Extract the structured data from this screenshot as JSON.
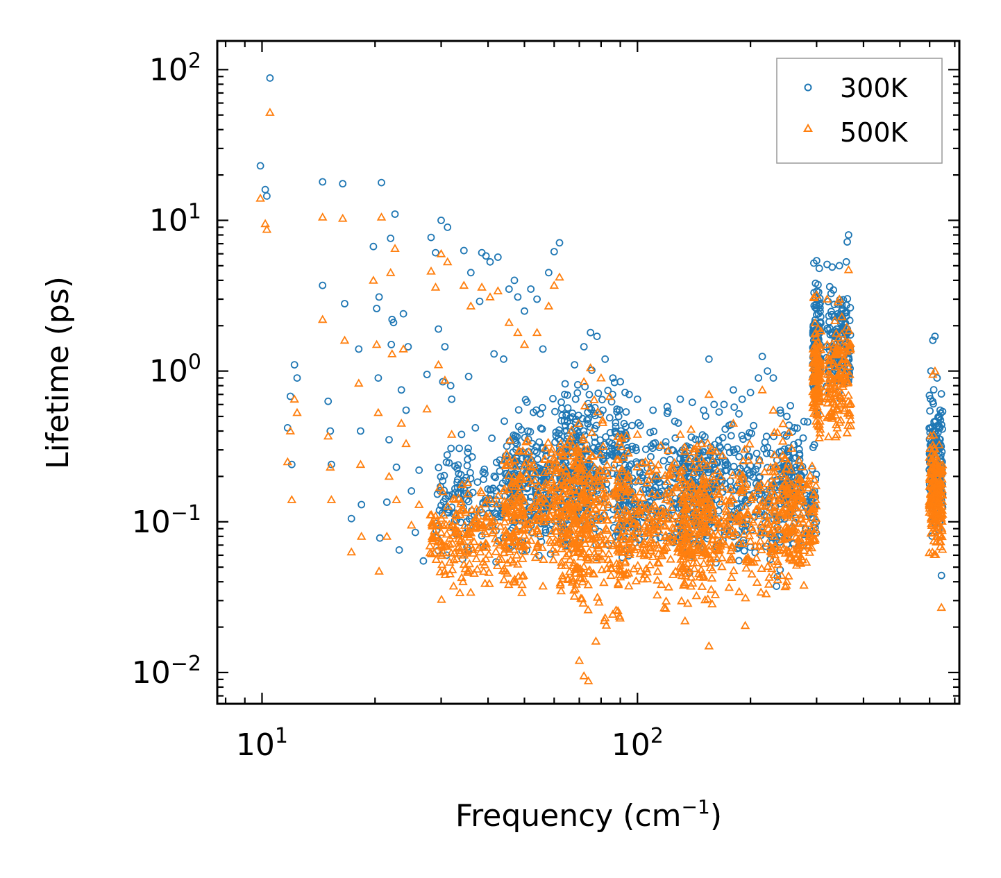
{
  "chart_data": {
    "type": "scatter",
    "xscale": "log",
    "yscale": "log",
    "xlabel": "Frequency (cm",
    "xlabel_sup": "−1",
    "xlabel_end": ")",
    "ylabel": "Lifetime (ps)",
    "xlim": [
      7.6,
      720
    ],
    "ylim": [
      0.0062,
      155
    ],
    "x_ticks": [
      {
        "value": 10,
        "base": "10",
        "exp": "1"
      },
      {
        "value": 100,
        "base": "10",
        "exp": "2"
      }
    ],
    "y_ticks": [
      {
        "value": 0.01,
        "base": "10",
        "exp": "−2"
      },
      {
        "value": 0.1,
        "base": "10",
        "exp": "−1"
      },
      {
        "value": 1,
        "base": "10",
        "exp": "0"
      },
      {
        "value": 10,
        "base": "10",
        "exp": "1"
      },
      {
        "value": 100,
        "base": "10",
        "exp": "2"
      }
    ],
    "legend": {
      "location": "upper-right"
    },
    "series": [
      {
        "name": "300K",
        "marker": "circle",
        "color": "#1f77b4",
        "points": [
          [
            9.9,
            23
          ],
          [
            10.2,
            16
          ],
          [
            10.3,
            14.5
          ],
          [
            10.5,
            88
          ],
          [
            11.7,
            0.42
          ],
          [
            11.9,
            0.68
          ],
          [
            12.0,
            0.24
          ],
          [
            12.2,
            1.1
          ],
          [
            12.4,
            0.9
          ],
          [
            14.5,
            18
          ],
          [
            14.5,
            3.7
          ],
          [
            15.0,
            0.63
          ],
          [
            15.2,
            0.4
          ],
          [
            15.3,
            0.24
          ],
          [
            16.4,
            17.5
          ],
          [
            16.6,
            2.8
          ],
          [
            17.3,
            0.105
          ],
          [
            18.1,
            1.4
          ],
          [
            18.3,
            0.4
          ],
          [
            18.4,
            0.13
          ],
          [
            19.8,
            6.7
          ],
          [
            20.2,
            2.6
          ],
          [
            20.4,
            0.9
          ],
          [
            20.5,
            3.1
          ],
          [
            20.8,
            17.8
          ],
          [
            20.6,
            0.078
          ],
          [
            21.5,
            0.135
          ],
          [
            21.8,
            0.35
          ],
          [
            22.0,
            7.6
          ],
          [
            22.1,
            1.5
          ],
          [
            22.2,
            2.2
          ],
          [
            22.4,
            2.1
          ],
          [
            22.6,
            11
          ],
          [
            22.8,
            0.23
          ],
          [
            23.2,
            0.065
          ],
          [
            23.5,
            0.75
          ],
          [
            23.8,
            2.4
          ],
          [
            24.2,
            0.55
          ],
          [
            24.5,
            1.45
          ],
          [
            25.0,
            0.16
          ],
          [
            25.6,
            0.085
          ],
          [
            26.2,
            0.22
          ],
          [
            26.9,
            0.055
          ],
          [
            27.5,
            0.95
          ],
          [
            28.2,
            7.7
          ],
          [
            29.0,
            6.1
          ],
          [
            29.5,
            1.9
          ],
          [
            30.0,
            10
          ],
          [
            30.3,
            0.85
          ],
          [
            30.7,
            1.45
          ],
          [
            31.2,
            9
          ],
          [
            31.8,
            0.8
          ],
          [
            32.0,
            0.65
          ],
          [
            34.0,
            0.38
          ],
          [
            34.5,
            6.3
          ],
          [
            35.5,
            0.92
          ],
          [
            36.0,
            4.5
          ],
          [
            37.0,
            0.42
          ],
          [
            38.0,
            2.9
          ],
          [
            38.5,
            6.1
          ],
          [
            39.5,
            5.8
          ],
          [
            40.5,
            5.3
          ],
          [
            41.5,
            1.3
          ],
          [
            42.5,
            5.7
          ],
          [
            44.0,
            1.2
          ],
          [
            45.5,
            3.5
          ],
          [
            47.0,
            4.0
          ],
          [
            48.0,
            3.1
          ],
          [
            50.0,
            2.5
          ],
          [
            52.0,
            3.5
          ],
          [
            54.0,
            3.0
          ],
          [
            56.0,
            1.4
          ],
          [
            58.0,
            4.5
          ],
          [
            60.0,
            6.2
          ],
          [
            62.0,
            7.1
          ],
          [
            64.0,
            0.7
          ],
          [
            68.0,
            1.1
          ],
          [
            72.0,
            1.45
          ],
          [
            75.0,
            1.8
          ],
          [
            78.0,
            1.7
          ],
          [
            82.0,
            1.2
          ],
          [
            86.0,
            0.9
          ],
          [
            90.0,
            0.85
          ],
          [
            95.0,
            0.7
          ],
          [
            100.0,
            0.65
          ],
          [
            110.0,
            0.55
          ],
          [
            120.0,
            0.58
          ],
          [
            130.0,
            0.65
          ],
          [
            140.0,
            0.62
          ],
          [
            150.0,
            0.55
          ],
          [
            155.0,
            1.2
          ],
          [
            160.0,
            0.6
          ],
          [
            170.0,
            0.6
          ],
          [
            180.0,
            0.75
          ],
          [
            190.0,
            0.65
          ],
          [
            200.0,
            0.72
          ],
          [
            210.0,
            0.9
          ],
          [
            215.0,
            1.25
          ],
          [
            222.0,
            1.0
          ],
          [
            230.0,
            0.9
          ],
          [
            240.0,
            0.55
          ],
          [
            250.0,
            0.5
          ],
          [
            262.0,
            0.42
          ],
          [
            295.0,
            5.2
          ],
          [
            300.0,
            5.4
          ],
          [
            305.0,
            4.8
          ],
          [
            320.0,
            5.1
          ],
          [
            330.0,
            4.9
          ],
          [
            345.0,
            5.0
          ],
          [
            360.0,
            5.3
          ],
          [
            365.0,
            8.0
          ],
          [
            362.0,
            7.2
          ],
          [
            605.0,
            1.0
          ],
          [
            612.0,
            1.6
          ],
          [
            620.0,
            1.7
          ],
          [
            628.0,
            0.9
          ],
          [
            640.0,
            0.55
          ],
          [
            645.0,
            0.044
          ],
          [
            648.0,
            0.25
          ]
        ],
        "bands": [
          {
            "xmin": 29,
            "xmax": 58,
            "ymin": 0.045,
            "ymax": 0.45,
            "n": 240
          },
          {
            "xmin": 44,
            "xmax": 75,
            "ymin": 0.05,
            "ymax": 0.9,
            "n": 260
          },
          {
            "xmin": 62,
            "xmax": 95,
            "ymin": 0.035,
            "ymax": 1.3,
            "n": 280
          },
          {
            "xmin": 88,
            "xmax": 160,
            "ymin": 0.04,
            "ymax": 0.65,
            "n": 320
          },
          {
            "xmin": 130,
            "xmax": 260,
            "ymin": 0.03,
            "ymax": 0.8,
            "n": 360
          },
          {
            "xmin": 245,
            "xmax": 300,
            "ymin": 0.05,
            "ymax": 0.6,
            "n": 120
          },
          {
            "xmin": 293,
            "xmax": 308,
            "ymin": 0.45,
            "ymax": 5.3,
            "n": 120
          },
          {
            "xmin": 318,
            "xmax": 370,
            "ymin": 0.5,
            "ymax": 5.2,
            "n": 140
          },
          {
            "xmin": 598,
            "xmax": 650,
            "ymin": 0.06,
            "ymax": 0.9,
            "n": 160
          }
        ]
      },
      {
        "name": "500K",
        "marker": "triangle",
        "color": "#ff7f0e",
        "points": [
          [
            9.9,
            14
          ],
          [
            10.2,
            9.5
          ],
          [
            10.3,
            8.7
          ],
          [
            10.5,
            52
          ],
          [
            11.7,
            0.25
          ],
          [
            11.9,
            0.4
          ],
          [
            12.0,
            0.14
          ],
          [
            12.2,
            0.65
          ],
          [
            12.4,
            0.53
          ],
          [
            14.5,
            10.5
          ],
          [
            14.5,
            2.2
          ],
          [
            15.0,
            0.37
          ],
          [
            15.2,
            0.23
          ],
          [
            15.3,
            0.14
          ],
          [
            16.4,
            10.3
          ],
          [
            16.6,
            1.6
          ],
          [
            17.3,
            0.063
          ],
          [
            18.1,
            0.83
          ],
          [
            18.3,
            0.24
          ],
          [
            18.4,
            0.08
          ],
          [
            19.8,
            4.0
          ],
          [
            20.2,
            1.5
          ],
          [
            20.4,
            0.53
          ],
          [
            20.5,
            0.047
          ],
          [
            20.8,
            10.5
          ],
          [
            21.5,
            0.08
          ],
          [
            21.8,
            0.2
          ],
          [
            22.0,
            4.5
          ],
          [
            22.2,
            1.3
          ],
          [
            22.6,
            6.5
          ],
          [
            22.8,
            0.14
          ],
          [
            23.5,
            0.45
          ],
          [
            23.8,
            1.4
          ],
          [
            24.2,
            0.33
          ],
          [
            25.0,
            0.095
          ],
          [
            26.2,
            0.13
          ],
          [
            27.5,
            0.56
          ],
          [
            28.2,
            4.6
          ],
          [
            29.0,
            3.6
          ],
          [
            29.5,
            1.1
          ],
          [
            30.0,
            6.0
          ],
          [
            30.7,
            0.87
          ],
          [
            31.2,
            5.3
          ],
          [
            32.0,
            0.38
          ],
          [
            34.5,
            3.7
          ],
          [
            36.0,
            2.7
          ],
          [
            38.5,
            3.6
          ],
          [
            40.5,
            3.1
          ],
          [
            42.5,
            3.4
          ],
          [
            45.5,
            2.1
          ],
          [
            48.0,
            1.8
          ],
          [
            50.0,
            1.5
          ],
          [
            54.0,
            1.8
          ],
          [
            58.0,
            2.7
          ],
          [
            60.0,
            3.7
          ],
          [
            62.0,
            4.2
          ],
          [
            72.0,
            0.85
          ],
          [
            75.0,
            1.05
          ],
          [
            80.0,
            0.9
          ],
          [
            100.0,
            0.38
          ],
          [
            130.0,
            0.38
          ],
          [
            155.0,
            0.7
          ],
          [
            180.0,
            0.45
          ],
          [
            215.0,
            0.75
          ],
          [
            230.0,
            0.55
          ],
          [
            295.0,
            3.1
          ],
          [
            300.0,
            3.2
          ],
          [
            320.0,
            3.0
          ],
          [
            345.0,
            3.0
          ],
          [
            365.0,
            4.7
          ],
          [
            612.0,
            0.95
          ],
          [
            620.0,
            1.0
          ],
          [
            645.0,
            0.027
          ],
          [
            648.0,
            0.15
          ],
          [
            72.0,
            0.0095
          ],
          [
            74.0,
            0.0088
          ],
          [
            70.0,
            0.012
          ],
          [
            155.0,
            0.015
          ]
        ],
        "bands": [
          {
            "xmin": 28,
            "xmax": 50,
            "ymin": 0.024,
            "ymax": 0.25,
            "n": 240
          },
          {
            "xmin": 44,
            "xmax": 75,
            "ymin": 0.028,
            "ymax": 0.6,
            "n": 280
          },
          {
            "xmin": 62,
            "xmax": 95,
            "ymin": 0.012,
            "ymax": 0.9,
            "n": 320
          },
          {
            "xmin": 88,
            "xmax": 160,
            "ymin": 0.02,
            "ymax": 0.45,
            "n": 320
          },
          {
            "xmin": 130,
            "xmax": 260,
            "ymin": 0.018,
            "ymax": 0.55,
            "n": 380
          },
          {
            "xmin": 245,
            "xmax": 300,
            "ymin": 0.03,
            "ymax": 0.45,
            "n": 140
          },
          {
            "xmin": 293,
            "xmax": 308,
            "ymin": 0.25,
            "ymax": 3.2,
            "n": 130
          },
          {
            "xmin": 318,
            "xmax": 370,
            "ymin": 0.26,
            "ymax": 3.0,
            "n": 150
          },
          {
            "xmin": 598,
            "xmax": 650,
            "ymin": 0.045,
            "ymax": 0.55,
            "n": 180
          }
        ]
      }
    ]
  }
}
